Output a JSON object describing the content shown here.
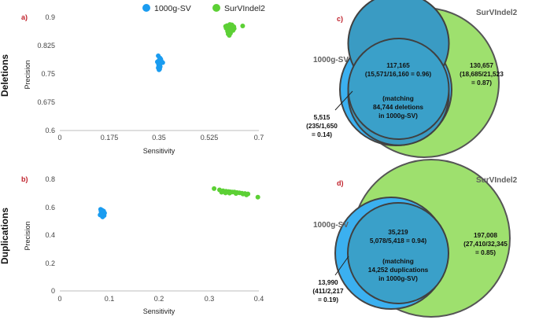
{
  "legend": [
    {
      "name": "1000g-SV",
      "color": "#1a9cf0"
    },
    {
      "name": "SurVIndel2",
      "color": "#5cd035"
    }
  ],
  "row_labels": {
    "deletions": "Deletions",
    "duplications": "Duplications"
  },
  "panel_labels": {
    "a": "a)",
    "b": "b)",
    "c": "c)",
    "d": "d)"
  },
  "chart_data": [
    {
      "type": "scatter",
      "panel": "a",
      "xlabel": "Sensitivity",
      "ylabel": "Precision",
      "xlim": [
        0,
        0.7
      ],
      "ylim": [
        0.6,
        0.9
      ],
      "xticks": [
        0,
        0.175,
        0.35,
        0.525,
        0.7
      ],
      "xtick_labels": [
        "0",
        "0.175",
        "0.35",
        "0.525",
        "0.7"
      ],
      "yticks": [
        0.6,
        0.675,
        0.75,
        0.825,
        0.9
      ],
      "ytick_labels": [
        "0.6",
        "0.675",
        "0.75",
        "0.825",
        "0.9"
      ],
      "series": [
        {
          "name": "1000g-SV",
          "color": "#1a9cf0",
          "x": [
            0.346,
            0.352,
            0.349,
            0.357,
            0.343,
            0.351,
            0.354,
            0.347,
            0.35,
            0.362,
            0.348,
            0.353,
            0.346,
            0.351,
            0.349,
            0.355
          ],
          "y": [
            0.798,
            0.792,
            0.786,
            0.784,
            0.782,
            0.78,
            0.778,
            0.776,
            0.774,
            0.78,
            0.771,
            0.769,
            0.766,
            0.763,
            0.761,
            0.789
          ]
        },
        {
          "name": "SurVIndel2",
          "color": "#5cd035",
          "x": [
            0.583,
            0.588,
            0.595,
            0.601,
            0.607,
            0.613,
            0.597,
            0.603,
            0.609,
            0.59,
            0.594,
            0.6,
            0.585,
            0.612,
            0.598,
            0.605,
            0.592,
            0.643,
            0.596,
            0.602
          ],
          "y": [
            0.876,
            0.878,
            0.874,
            0.877,
            0.873,
            0.87,
            0.868,
            0.866,
            0.865,
            0.863,
            0.861,
            0.858,
            0.871,
            0.875,
            0.881,
            0.88,
            0.856,
            0.877,
            0.852,
            0.869
          ]
        }
      ]
    },
    {
      "type": "scatter",
      "panel": "b",
      "xlabel": "Sensitivity",
      "ylabel": "Precision",
      "xlim": [
        0,
        0.4
      ],
      "ylim": [
        0,
        0.8
      ],
      "xticks": [
        0,
        0.1,
        0.2,
        0.3,
        0.4
      ],
      "xtick_labels": [
        "0",
        "0.1",
        "0.2",
        "0.3",
        "0.4"
      ],
      "yticks": [
        0,
        0.2,
        0.4,
        0.6,
        0.8
      ],
      "ytick_labels": [
        "0",
        "0.2",
        "0.4",
        "0.6",
        "0.8"
      ],
      "series": [
        {
          "name": "1000g-SV",
          "color": "#1a9cf0",
          "x": [
            0.082,
            0.085,
            0.088,
            0.083,
            0.086,
            0.09,
            0.084,
            0.087,
            0.081,
            0.089,
            0.085,
            0.086,
            0.083,
            0.088,
            0.085
          ],
          "y": [
            0.585,
            0.578,
            0.572,
            0.567,
            0.563,
            0.558,
            0.553,
            0.548,
            0.544,
            0.54,
            0.535,
            0.53,
            0.574,
            0.56,
            0.549
          ]
        },
        {
          "name": "SurVIndel2",
          "color": "#5cd035",
          "x": [
            0.31,
            0.321,
            0.328,
            0.334,
            0.339,
            0.343,
            0.347,
            0.351,
            0.356,
            0.361,
            0.366,
            0.372,
            0.378,
            0.398,
            0.325,
            0.341,
            0.354,
            0.368,
            0.375,
            0.333
          ],
          "y": [
            0.733,
            0.724,
            0.718,
            0.714,
            0.712,
            0.71,
            0.709,
            0.708,
            0.705,
            0.703,
            0.7,
            0.698,
            0.695,
            0.672,
            0.707,
            0.701,
            0.698,
            0.694,
            0.688,
            0.702
          ]
        }
      ]
    }
  ],
  "venn": [
    {
      "panel": "c",
      "left_set": "1000g-SV",
      "right_set": "SurVIndel2",
      "overlap": [
        "117,165",
        "(15,571/16,160 = 0.96)"
      ],
      "matching": [
        "(matching",
        "84,744 deletions",
        "in 1000g-SV)"
      ],
      "right_only": [
        "130,657",
        "(18,685/21,523",
        "= 0.87)"
      ],
      "left_only": [
        "5,515",
        "(235/1,650",
        "= 0.14)"
      ]
    },
    {
      "panel": "d",
      "left_set": "1000g-SV",
      "right_set": "SurVIndel2",
      "overlap": [
        "35,219",
        "5,078/5,418 = 0.94)"
      ],
      "matching": [
        "(matching",
        "14,252 duplications",
        "in 1000g-SV)"
      ],
      "right_only": [
        "197,008",
        "(27,410/32,345",
        "= 0.85)"
      ],
      "left_only": [
        "13,990",
        "(411/2,217",
        "= 0.19)"
      ]
    }
  ]
}
